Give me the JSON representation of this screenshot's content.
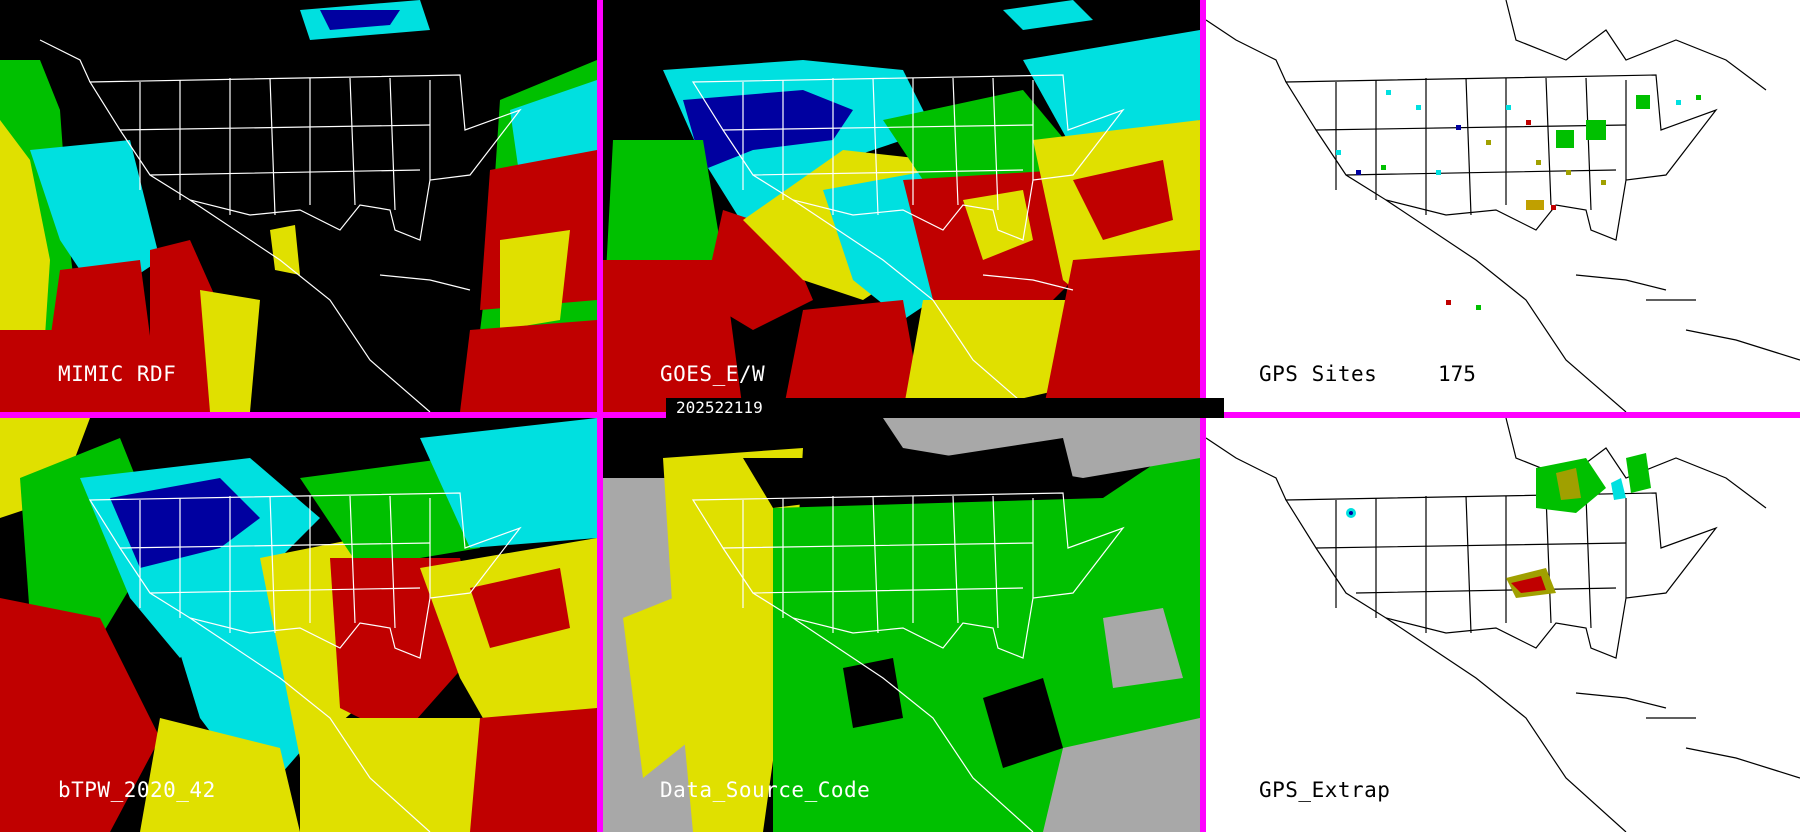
{
  "panels": {
    "mimic_rdf": {
      "label": "MIMIC RDF"
    },
    "goes_ew": {
      "label": "GOES_E/W"
    },
    "gps_sites": {
      "label": "GPS Sites",
      "count": "175"
    },
    "btpw": {
      "label": "bTPW_2020_42"
    },
    "data_source": {
      "label": "Data_Source_Code"
    },
    "gps_extrap": {
      "label": "GPS_Extrap"
    }
  },
  "timestamp": "202522119",
  "colors": {
    "divider": "#ff00ff",
    "tpw_very_low": "#0000a0",
    "tpw_low": "#00e0e0",
    "tpw_mid": "#00c000",
    "tpw_high": "#e0e000",
    "tpw_very_high": "#c00000",
    "source_gray": "#a8a8a8",
    "map_lines_dark": "#ffffff",
    "map_lines_light": "#000000"
  }
}
